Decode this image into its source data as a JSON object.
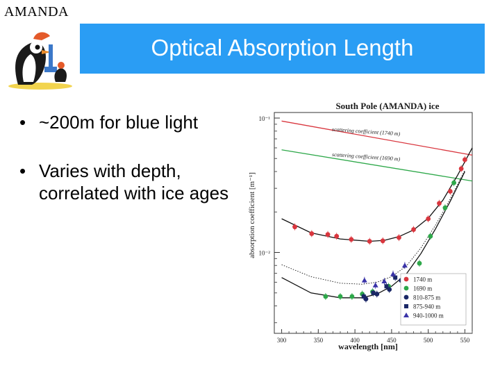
{
  "slide": {
    "corner_label": "AMANDA",
    "title": "Optical Absorption Length",
    "bullets": [
      "~200m for blue light",
      "Varies with depth, correlated with ice ages"
    ]
  },
  "colors": {
    "title_bar": "#2a9df4",
    "title_text": "#ffffff",
    "red": "#d9363e",
    "green": "#2ea84a",
    "navy": "#1a2766",
    "purple": "#3a33a8"
  },
  "chart_data": {
    "type": "scatter",
    "title": "South Pole (AMANDA) ice",
    "xlabel": "wavelength [nm]",
    "ylabel": "absorption coefficient [m⁻¹]",
    "x_ticks": [
      "300",
      "350",
      "400",
      "450",
      "500",
      "550"
    ],
    "y_ticks": [
      "10⁻¹",
      "10⁻²"
    ],
    "xlim": [
      290,
      560
    ],
    "ylim": [
      0.0025,
      0.11
    ],
    "y_scale": "log",
    "legend_position": "bottom-right",
    "annotations": [
      {
        "text": "scattering coefficient (1740 m)",
        "x": 415,
        "y": 0.077
      },
      {
        "text": "scattering coefficient (1690 m)",
        "x": 415,
        "y": 0.05
      }
    ],
    "scattering_lines": [
      {
        "name": "scattering coefficient (1740 m)",
        "x": [
          300,
          560
        ],
        "y": [
          0.095,
          0.053
        ]
      },
      {
        "name": "scattering coefficient (1690 m)",
        "x": [
          300,
          560
        ],
        "y": [
          0.058,
          0.034
        ]
      }
    ],
    "series": [
      {
        "name": "1740 m",
        "marker": "circle",
        "color": "#d9363e",
        "x": [
          318,
          341,
          363,
          375,
          395,
          420,
          438,
          460,
          480,
          500,
          515,
          530,
          545,
          550
        ],
        "y": [
          0.0155,
          0.0138,
          0.0136,
          0.0132,
          0.0125,
          0.0121,
          0.0122,
          0.0129,
          0.0148,
          0.0178,
          0.0232,
          0.0285,
          0.042,
          0.049
        ]
      },
      {
        "name": "1690 m",
        "marker": "circle",
        "color": "#2ea84a",
        "x": [
          360,
          380,
          396,
          410,
          424,
          446,
          465,
          488,
          503,
          523,
          535
        ],
        "y": [
          0.0047,
          0.0047,
          0.0047,
          0.0049,
          0.0051,
          0.0056,
          0.0062,
          0.0083,
          0.0132,
          0.0215,
          0.033
        ]
      },
      {
        "name": "810-875 m",
        "marker": "circle",
        "color": "#1a2766",
        "x": [
          415,
          430,
          447,
          463
        ],
        "y": [
          0.0045,
          0.0049,
          0.0053,
          0.0062
        ]
      },
      {
        "name": "875-940 m",
        "marker": "square",
        "color": "#1a2766",
        "x": [
          412,
          425,
          443,
          455
        ],
        "y": [
          0.0047,
          0.005,
          0.0056,
          0.0065
        ]
      },
      {
        "name": "940-1000 m",
        "marker": "triangle",
        "color": "#3a33a8",
        "x": [
          413,
          428,
          440,
          452,
          468
        ],
        "y": [
          0.0062,
          0.0057,
          0.0061,
          0.0069,
          0.008
        ]
      }
    ],
    "fit_curves": [
      {
        "name": "fit upper",
        "x": [
          300,
          340,
          380,
          420,
          440,
          460,
          480,
          500,
          520,
          540,
          560
        ],
        "y": [
          0.0178,
          0.014,
          0.0126,
          0.0121,
          0.0123,
          0.0131,
          0.0147,
          0.018,
          0.0245,
          0.0375,
          0.06
        ]
      },
      {
        "name": "fit lower",
        "x": [
          300,
          340,
          380,
          410,
          430,
          450,
          470,
          490,
          510,
          530,
          550
        ],
        "y": [
          0.0065,
          0.005,
          0.0046,
          0.0046,
          0.0049,
          0.0056,
          0.0069,
          0.0098,
          0.015,
          0.024,
          0.04
        ]
      },
      {
        "name": "fit dotted",
        "x": [
          300,
          340,
          380,
          410,
          430,
          450,
          470,
          490,
          510,
          530,
          550
        ],
        "y": [
          0.0081,
          0.0066,
          0.0059,
          0.0058,
          0.006,
          0.0066,
          0.0079,
          0.0108,
          0.016,
          0.025,
          0.041
        ]
      }
    ]
  }
}
